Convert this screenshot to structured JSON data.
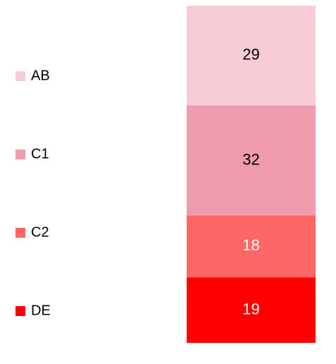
{
  "chart_data": {
    "type": "stacked_bar",
    "legend": "left",
    "series": [
      {
        "name": "AB",
        "color": "#f8ccd6",
        "label_color": "#000000",
        "values": [
          29
        ]
      },
      {
        "name": "C1",
        "color": "#f09aae",
        "label_color": "#000000",
        "values": [
          32
        ]
      },
      {
        "name": "C2",
        "color": "#ff6666",
        "label_color": "#ffffff",
        "values": [
          18
        ]
      },
      {
        "name": "DE",
        "color": "#ff0000",
        "label_color": "#ffffff",
        "values": [
          19
        ]
      }
    ]
  }
}
